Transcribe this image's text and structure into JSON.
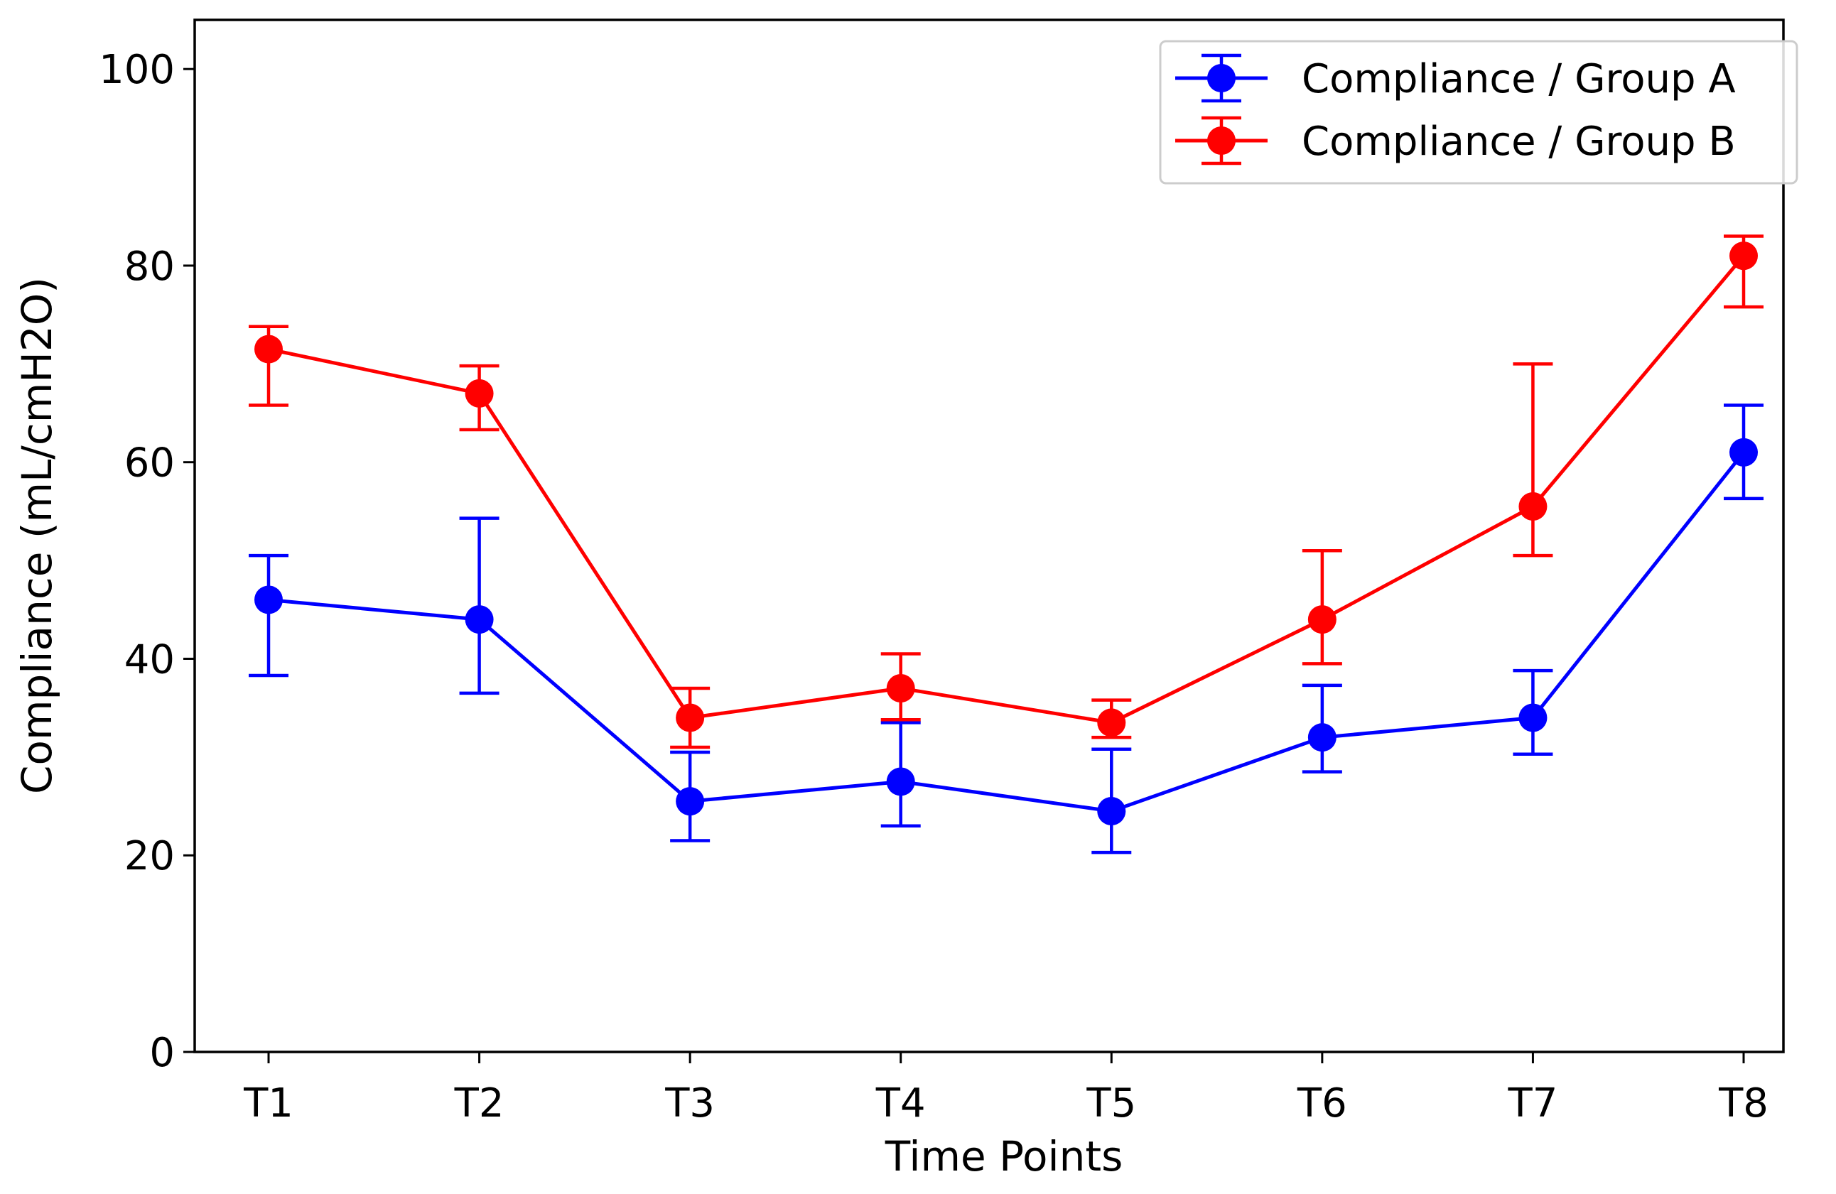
{
  "chart_data": {
    "type": "line",
    "title": "",
    "xlabel": "Time Points",
    "ylabel": "Compliance (mL/cmH2O)",
    "ylim": [
      0,
      105
    ],
    "yticks": [
      0,
      20,
      40,
      60,
      80,
      100
    ],
    "categories": [
      "T1",
      "T2",
      "T3",
      "T4",
      "T5",
      "T6",
      "T7",
      "T8"
    ],
    "grid": false,
    "legend_position": "top-right",
    "series": [
      {
        "name": "Compliance / Group A",
        "color": "#0000ff",
        "values": [
          46,
          44,
          25.5,
          27.5,
          24.5,
          32,
          34,
          61
        ],
        "err_lower": [
          38.3,
          36.5,
          21.5,
          23.0,
          20.3,
          28.5,
          30.3,
          56.3
        ],
        "err_upper": [
          50.5,
          54.3,
          30.5,
          33.5,
          30.8,
          37.3,
          38.8,
          65.8
        ]
      },
      {
        "name": "Compliance / Group B",
        "color": "#ff0000",
        "values": [
          71.5,
          67,
          34,
          37,
          33.5,
          44,
          55.5,
          81
        ],
        "err_lower": [
          65.8,
          63.3,
          31.0,
          33.8,
          32.0,
          39.5,
          50.5,
          75.8
        ],
        "err_upper": [
          73.8,
          69.8,
          37.0,
          40.5,
          35.8,
          51.0,
          70.0,
          83.0
        ]
      }
    ]
  }
}
